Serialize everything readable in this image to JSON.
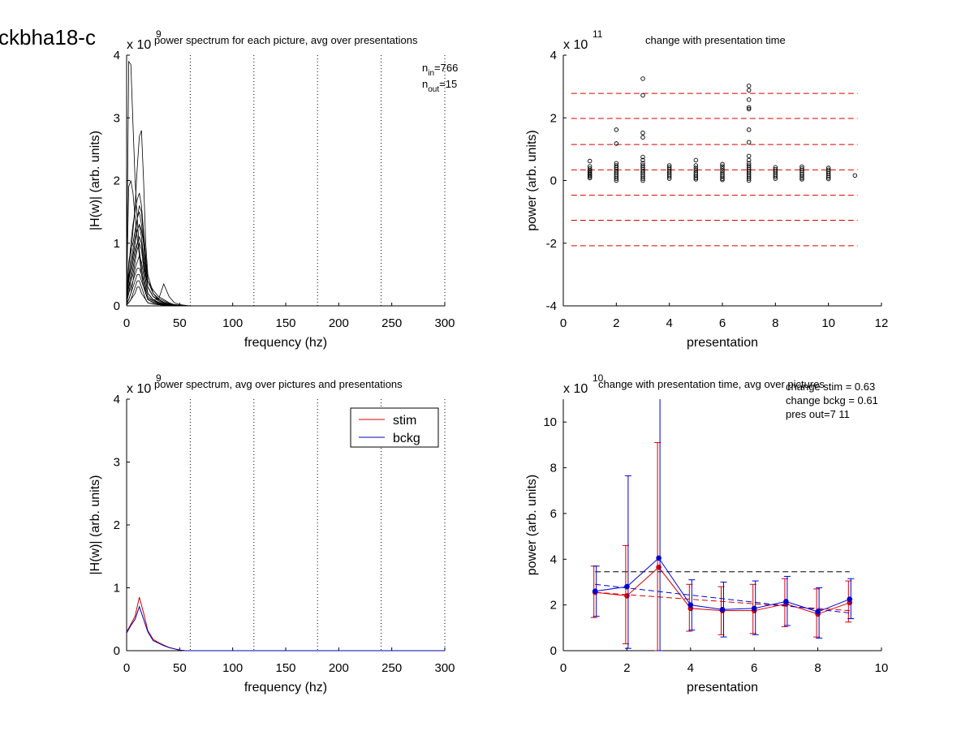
{
  "figure_title": "ckbha18-c",
  "chart_data": [
    {
      "id": "p1",
      "type": "line",
      "title": "power spectrum for each picture, avg over presentations",
      "xlabel": "frequency (hz)",
      "ylabel": "|H(w)| (arb. units)",
      "xlim": [
        0,
        300
      ],
      "ylim": [
        0,
        4
      ],
      "xticks": [
        "0",
        "50",
        "100",
        "150",
        "200",
        "250",
        "300"
      ],
      "yticks": [
        "0",
        "1",
        "2",
        "3",
        "4"
      ],
      "y_multiplier": {
        "base": "x 10",
        "exp": "9"
      },
      "vlines": [
        60,
        120,
        180,
        240,
        300
      ],
      "annotations": [
        {
          "main": "n",
          "sub": "in",
          "value": "=766"
        },
        {
          "main": "n",
          "sub": "out",
          "value": "=15"
        }
      ],
      "x": [
        0,
        2,
        4,
        6,
        8,
        10,
        12,
        14,
        16,
        18,
        20,
        25,
        30,
        35,
        40,
        45,
        50,
        55,
        60,
        80,
        100,
        150,
        200,
        250,
        300
      ],
      "series": [
        {
          "values": [
            0.3,
            3.9,
            3.85,
            2.9,
            2.0,
            1.4,
            0.9,
            0.6,
            0.4,
            0.25,
            0.15,
            0.08,
            0.05,
            0.03,
            0.02,
            0.01,
            0.01,
            0,
            0,
            0,
            0,
            0,
            0,
            0,
            0
          ]
        },
        {
          "values": [
            0.2,
            1.9,
            2.0,
            1.8,
            1.4,
            1.1,
            0.8,
            0.5,
            0.3,
            0.2,
            0.12,
            0.08,
            0.04,
            0.02,
            0.01,
            0.01,
            0,
            0,
            0,
            0,
            0,
            0,
            0,
            0,
            0
          ]
        },
        {
          "values": [
            0.1,
            0.4,
            0.8,
            1.2,
            1.6,
            2.2,
            2.7,
            2.8,
            2.0,
            1.0,
            0.5,
            0.2,
            0.1,
            0.05,
            0.02,
            0.01,
            0,
            0,
            0,
            0,
            0,
            0,
            0,
            0,
            0
          ]
        },
        {
          "values": [
            0.1,
            0.6,
            1.0,
            1.3,
            1.5,
            1.7,
            1.8,
            1.6,
            1.2,
            0.8,
            0.4,
            0.2,
            0.12,
            0.08,
            0.04,
            0.02,
            0.01,
            0,
            0,
            0,
            0,
            0,
            0,
            0,
            0
          ]
        },
        {
          "values": [
            0.2,
            0.7,
            0.9,
            1.0,
            1.2,
            1.4,
            1.5,
            1.3,
            1.0,
            0.6,
            0.3,
            0.15,
            0.1,
            0.05,
            0.02,
            0.01,
            0,
            0,
            0,
            0,
            0,
            0,
            0,
            0,
            0
          ]
        },
        {
          "values": [
            0.1,
            0.5,
            0.6,
            0.8,
            1.0,
            1.2,
            1.3,
            1.1,
            0.8,
            0.5,
            0.3,
            0.15,
            0.1,
            0.35,
            0.15,
            0.05,
            0.02,
            0.01,
            0,
            0,
            0,
            0,
            0,
            0,
            0
          ]
        },
        {
          "values": [
            0.1,
            0.3,
            0.5,
            0.7,
            0.9,
            1.0,
            1.1,
            1.0,
            0.7,
            0.4,
            0.2,
            0.1,
            0.1,
            0.06,
            0.03,
            0.01,
            0,
            0,
            0,
            0,
            0,
            0,
            0,
            0,
            0
          ]
        },
        {
          "values": [
            0.05,
            0.3,
            0.4,
            0.6,
            0.8,
            1.0,
            1.1,
            1.0,
            0.8,
            0.5,
            0.3,
            0.15,
            0.08,
            0.04,
            0.02,
            0.01,
            0,
            0,
            0,
            0,
            0,
            0,
            0,
            0,
            0
          ]
        },
        {
          "values": [
            0.1,
            0.2,
            0.4,
            0.5,
            0.7,
            0.9,
            1.0,
            0.9,
            0.6,
            0.4,
            0.2,
            0.1,
            0.05,
            0.03,
            0.01,
            0,
            0,
            0,
            0,
            0,
            0,
            0,
            0,
            0,
            0
          ]
        },
        {
          "values": [
            0.05,
            0.2,
            0.3,
            0.4,
            0.6,
            0.7,
            0.8,
            0.7,
            0.5,
            0.3,
            0.2,
            0.1,
            0.06,
            0.03,
            0.02,
            0.01,
            0,
            0,
            0,
            0,
            0,
            0,
            0,
            0,
            0
          ]
        },
        {
          "values": [
            0.05,
            0.1,
            0.2,
            0.4,
            0.5,
            0.6,
            0.6,
            0.5,
            0.4,
            0.2,
            0.1,
            0.06,
            0.03,
            0.02,
            0.01,
            0,
            0,
            0,
            0,
            0,
            0,
            0,
            0,
            0,
            0
          ]
        },
        {
          "values": [
            0.02,
            0.1,
            0.2,
            0.3,
            0.4,
            0.5,
            0.5,
            0.4,
            0.3,
            0.2,
            0.1,
            0.05,
            0.03,
            0.02,
            0.01,
            0,
            0,
            0,
            0,
            0,
            0,
            0,
            0,
            0,
            0
          ]
        },
        {
          "values": [
            0.02,
            0.05,
            0.1,
            0.2,
            0.3,
            0.4,
            0.4,
            0.3,
            0.2,
            0.1,
            0.05,
            0.03,
            0.02,
            0.01,
            0,
            0,
            0,
            0,
            0,
            0,
            0,
            0,
            0,
            0,
            0
          ]
        },
        {
          "values": [
            0.01,
            0.05,
            0.1,
            0.15,
            0.2,
            0.3,
            0.3,
            0.2,
            0.15,
            0.1,
            0.05,
            0.03,
            0.02,
            0.01,
            0,
            0,
            0,
            0,
            0,
            0,
            0,
            0,
            0,
            0,
            0
          ]
        },
        {
          "values": [
            0.2,
            0.4,
            0.6,
            0.8,
            1.0,
            1.2,
            1.3,
            1.2,
            1.0,
            0.7,
            0.4,
            0.25,
            0.15,
            0.1,
            0.05,
            0.02,
            0.01,
            0,
            0,
            0,
            0,
            0,
            0,
            0,
            0
          ]
        },
        {
          "values": [
            0.3,
            0.5,
            0.6,
            0.9,
            1.1,
            1.4,
            1.6,
            1.5,
            1.1,
            0.7,
            0.4,
            0.2,
            0.1,
            0.05,
            0.02,
            0.01,
            0,
            0,
            0,
            0,
            0,
            0,
            0,
            0,
            0
          ]
        }
      ]
    },
    {
      "id": "p2",
      "type": "scatter",
      "title": "change with presentation time",
      "xlabel": "presentation",
      "ylabel": "power (arb. units)",
      "xlim": [
        0,
        12
      ],
      "ylim": [
        -4,
        4
      ],
      "xticks": [
        "0",
        "2",
        "4",
        "6",
        "8",
        "10",
        "12"
      ],
      "yticks": [
        "-4",
        "-2",
        "0",
        "2",
        "4"
      ],
      "y_multiplier": {
        "base": "x 10",
        "exp": "11"
      },
      "hlines": [
        2.78,
        1.98,
        1.15,
        0.34,
        -0.47,
        -1.27,
        -2.08
      ],
      "columns": [
        {
          "x": 1,
          "values": [
            0.62,
            0.45,
            0.38,
            0.32,
            0.28,
            0.24,
            0.2,
            0.16,
            0.12,
            0.08
          ]
        },
        {
          "x": 2,
          "values": [
            1.62,
            1.18,
            0.55,
            0.48,
            0.42,
            0.36,
            0.3,
            0.24,
            0.18,
            0.12,
            0.06,
            0.0
          ]
        },
        {
          "x": 3,
          "values": [
            3.25,
            2.72,
            1.52,
            1.38,
            0.75,
            0.65,
            0.55,
            0.48,
            0.42,
            0.36,
            0.3,
            0.24,
            0.18,
            0.12,
            0.06,
            0.0
          ]
        },
        {
          "x": 4,
          "values": [
            0.48,
            0.42,
            0.36,
            0.3,
            0.24,
            0.18,
            0.12,
            0.06
          ]
        },
        {
          "x": 5,
          "values": [
            0.65,
            0.48,
            0.4,
            0.33,
            0.26,
            0.2,
            0.14,
            0.08,
            0.04
          ]
        },
        {
          "x": 6,
          "values": [
            0.52,
            0.45,
            0.38,
            0.31,
            0.24,
            0.18,
            0.12,
            0.06,
            0.02
          ]
        },
        {
          "x": 7,
          "values": [
            3.02,
            2.88,
            2.58,
            2.33,
            2.28,
            1.62,
            1.22,
            0.78,
            0.65,
            0.55,
            0.48,
            0.42,
            0.36,
            0.3,
            0.24,
            0.18,
            0.12,
            0.06,
            0.0
          ]
        },
        {
          "x": 8,
          "values": [
            0.42,
            0.36,
            0.3,
            0.24,
            0.18,
            0.12,
            0.06
          ]
        },
        {
          "x": 9,
          "values": [
            0.44,
            0.38,
            0.32,
            0.26,
            0.2,
            0.14,
            0.08,
            0.04
          ]
        },
        {
          "x": 10,
          "values": [
            0.4,
            0.34,
            0.28,
            0.22,
            0.16,
            0.1,
            0.05
          ]
        },
        {
          "x": 11,
          "values": [
            0.16
          ]
        }
      ]
    },
    {
      "id": "p3",
      "type": "line",
      "title": "power spectrum, avg over pictures and presentations",
      "xlabel": "frequency (hz)",
      "ylabel": "|H(w)| (arb. units)",
      "xlim": [
        0,
        300
      ],
      "ylim": [
        0,
        4
      ],
      "xticks": [
        "0",
        "50",
        "100",
        "150",
        "200",
        "250",
        "300"
      ],
      "yticks": [
        "0",
        "1",
        "2",
        "3",
        "4"
      ],
      "y_multiplier": {
        "base": "x 10",
        "exp": "9"
      },
      "vlines": [
        60,
        120,
        180,
        240,
        300
      ],
      "legend": {
        "position": "top-right"
      },
      "x": [
        0,
        4,
        8,
        12,
        16,
        20,
        25,
        30,
        35,
        40,
        45,
        50,
        55,
        60,
        100,
        150,
        200,
        250,
        300
      ],
      "series": [
        {
          "name": "stim",
          "color": "#d40000",
          "values": [
            0.3,
            0.42,
            0.55,
            0.85,
            0.6,
            0.32,
            0.18,
            0.13,
            0.09,
            0.05,
            0.03,
            0.01,
            0,
            0,
            0,
            0,
            0,
            0,
            0
          ]
        },
        {
          "name": "bckg",
          "color": "#0000b0",
          "values": [
            0.28,
            0.4,
            0.5,
            0.7,
            0.5,
            0.3,
            0.16,
            0.12,
            0.08,
            0.05,
            0.03,
            0.01,
            0,
            0,
            0,
            0,
            0,
            0,
            0
          ]
        }
      ]
    },
    {
      "id": "p4",
      "type": "line",
      "title": "change with presentation time, avg over pictures",
      "xlabel": "presentation",
      "ylabel": "power (arb. units)",
      "xlim": [
        0,
        10
      ],
      "ylim": [
        0,
        11
      ],
      "xticks": [
        "0",
        "2",
        "4",
        "6",
        "8",
        "10"
      ],
      "yticks": [
        "0",
        "2",
        "4",
        "6",
        "8",
        "10"
      ],
      "y_multiplier": {
        "base": "x 10",
        "exp": "10"
      },
      "annotations": [
        "change stim = 0.63",
        "change bckg = 0.61",
        "pres out=7 11"
      ],
      "hline": {
        "y": 3.45,
        "color": "#000000"
      },
      "x": [
        1,
        2,
        3,
        4,
        5,
        6,
        7,
        8,
        9
      ],
      "series": [
        {
          "name": "stim",
          "color": "#d40000",
          "values": [
            2.55,
            2.4,
            3.65,
            1.85,
            1.75,
            1.75,
            2.05,
            1.6,
            2.1
          ],
          "err_low": [
            1.45,
            0.3,
            0.0,
            0.85,
            0.7,
            0.75,
            1.05,
            0.6,
            1.25
          ],
          "err_high": [
            3.7,
            4.6,
            9.1,
            2.9,
            2.8,
            2.9,
            3.15,
            2.7,
            3.05
          ],
          "trend": [
            2.55,
            1.75
          ]
        },
        {
          "name": "bckg",
          "color": "#0000d0",
          "values": [
            2.6,
            2.8,
            4.05,
            2.0,
            1.8,
            1.85,
            2.15,
            1.7,
            2.25
          ],
          "err_low": [
            1.5,
            0.1,
            0.0,
            0.9,
            0.6,
            0.7,
            1.1,
            0.55,
            1.4
          ],
          "err_high": [
            3.7,
            7.65,
            11.0,
            3.1,
            3.0,
            3.05,
            3.25,
            2.75,
            3.15
          ],
          "trend": [
            2.9,
            1.65
          ]
        }
      ]
    }
  ]
}
